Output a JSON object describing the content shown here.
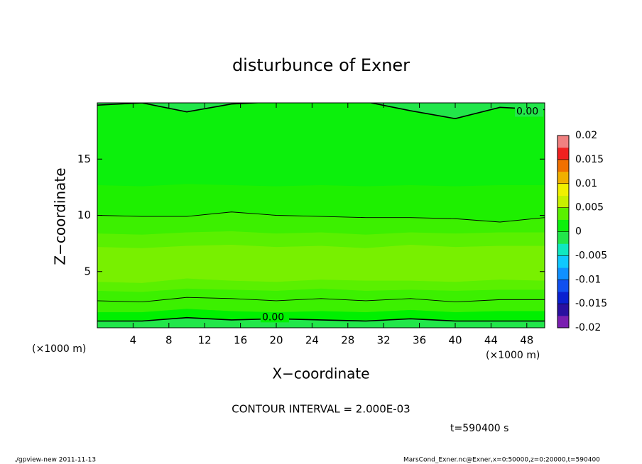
{
  "chart_data": {
    "type": "contour",
    "title": "disturbunce of Exner",
    "xlabel": "X−coordinate",
    "ylabel": "Z−coordinate",
    "xunit": "(×1000 m)",
    "yunit": "(×1000 m)",
    "xlim": [
      0,
      50
    ],
    "ylim": [
      0,
      20
    ],
    "xticks": [
      4,
      8,
      12,
      16,
      20,
      24,
      28,
      32,
      36,
      40,
      44,
      48
    ],
    "yticks": [
      5,
      10,
      15
    ],
    "grid_x": [
      0,
      5,
      10,
      15,
      20,
      25,
      30,
      35,
      40,
      45,
      50
    ],
    "fills": [
      {
        "color": "#22e64a",
        "z": [
          0,
          0,
          0,
          0,
          0,
          0,
          0,
          0,
          0,
          0,
          0
        ]
      },
      {
        "color": "#00f000",
        "z": [
          0.6,
          0.6,
          0.9,
          0.7,
          0.8,
          0.7,
          0.6,
          0.8,
          0.6,
          0.6,
          0.6
        ]
      },
      {
        "color": "#3cf000",
        "z": [
          1.4,
          1.4,
          1.7,
          1.5,
          1.4,
          1.5,
          1.4,
          1.6,
          1.4,
          1.5,
          1.5
        ]
      },
      {
        "color": "#5af000",
        "z": [
          3.3,
          3.2,
          3.5,
          3.4,
          3.3,
          3.5,
          3.3,
          3.4,
          3.3,
          3.4,
          3.4
        ]
      },
      {
        "color": "#78f000",
        "z": [
          4.1,
          4.0,
          4.4,
          4.2,
          4.1,
          4.3,
          4.2,
          4.2,
          4.1,
          4.3,
          4.2
        ]
      },
      {
        "color": "#5af000",
        "z": [
          7.2,
          7.1,
          7.3,
          7.4,
          7.2,
          7.3,
          7.1,
          7.4,
          7.2,
          7.3,
          7.3
        ]
      },
      {
        "color": "#3cf000",
        "z": [
          8.4,
          8.3,
          8.5,
          8.6,
          8.4,
          8.5,
          8.3,
          8.5,
          8.4,
          8.5,
          8.5
        ]
      },
      {
        "color": "#1ef000",
        "z": [
          10.0,
          9.9,
          9.9,
          10.3,
          10.0,
          9.9,
          9.8,
          9.8,
          9.7,
          9.4,
          9.8
        ]
      },
      {
        "color": "#0cf00c",
        "z": [
          12.7,
          12.6,
          12.8,
          12.7,
          12.6,
          12.7,
          12.6,
          12.7,
          12.6,
          12.7,
          12.7
        ]
      },
      {
        "color": "#22e64a",
        "z": [
          19.8,
          20.0,
          19.2,
          19.9,
          20.1,
          20.1,
          20.1,
          19.3,
          18.6,
          19.6,
          19.4
        ]
      }
    ],
    "contours": [
      {
        "level": 0,
        "label": "0.00",
        "z": [
          0.6,
          0.6,
          0.9,
          0.7,
          0.8,
          0.7,
          0.6,
          0.8,
          0.6,
          0.6,
          0.6
        ]
      },
      {
        "level": 0.002,
        "z": [
          2.4,
          2.3,
          2.7,
          2.6,
          2.4,
          2.6,
          2.4,
          2.6,
          2.3,
          2.5,
          2.5
        ]
      },
      {
        "level": 0.002,
        "z": [
          10.0,
          9.9,
          9.9,
          10.3,
          10.0,
          9.9,
          9.8,
          9.8,
          9.7,
          9.4,
          9.8
        ]
      },
      {
        "level": 0,
        "label": "0.00",
        "z": [
          19.8,
          20.0,
          19.2,
          19.9,
          20.1,
          20.1,
          20.1,
          19.3,
          18.6,
          19.6,
          19.4
        ]
      }
    ],
    "colorbar": {
      "lim": [
        -0.02,
        0.02
      ],
      "ticks": [
        0.02,
        0.015,
        0.01,
        0.005,
        0,
        -0.005,
        -0.01,
        -0.015,
        -0.02
      ],
      "colors": [
        "#7a1fb0",
        "#2a10a0",
        "#0a20d0",
        "#1050f0",
        "#1090ff",
        "#10c8ff",
        "#10e8c0",
        "#22e64a",
        "#0cf00c",
        "#5af000",
        "#c8f000",
        "#f0f000",
        "#f0b000",
        "#f07000",
        "#f02020",
        "#f08080"
      ]
    },
    "interval_note": "CONTOUR INTERVAL = 2.000E-03",
    "time_note": "t=590400 s",
    "footer_left": "./gpview-new   2011-11-13",
    "footer_right": "MarsCond_Exner.nc@Exner,x=0:50000,z=0:20000,t=590400"
  }
}
